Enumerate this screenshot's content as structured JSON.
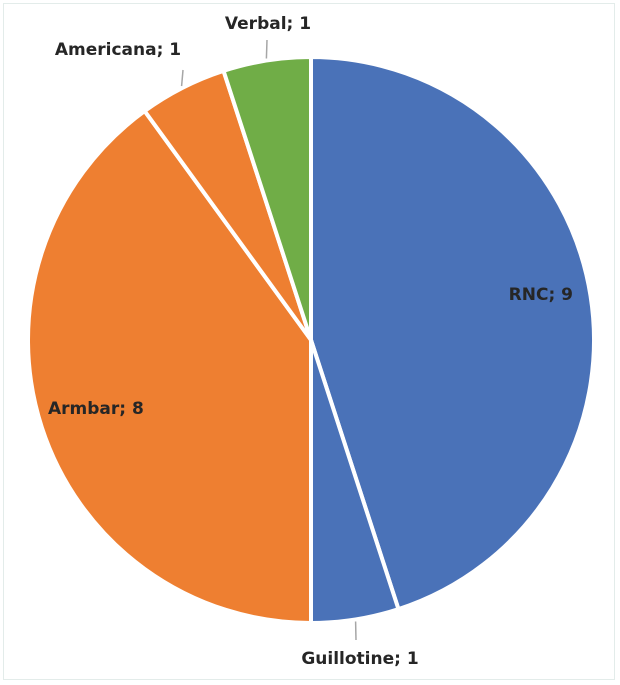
{
  "chart_data": {
    "type": "pie",
    "title": "",
    "slices": [
      {
        "label": "RNC",
        "value": 9,
        "color": "#4a72b8",
        "display": "RNC; 9"
      },
      {
        "label": "Guillotine",
        "value": 1,
        "color": "#4a72b8",
        "display": "Guillotine; 1"
      },
      {
        "label": "Armbar",
        "value": 8,
        "color": "#ee7f31",
        "display": "Armbar; 8"
      },
      {
        "label": "Americana",
        "value": 1,
        "color": "#ee7f31",
        "display": "Americana; 1"
      },
      {
        "label": "Verbal",
        "value": 1,
        "color": "#70ad47",
        "display": "Verbal; 1"
      }
    ],
    "start": "12 o'clock",
    "direction": "clockwise",
    "legend": "none",
    "data_labels": "category; value"
  }
}
